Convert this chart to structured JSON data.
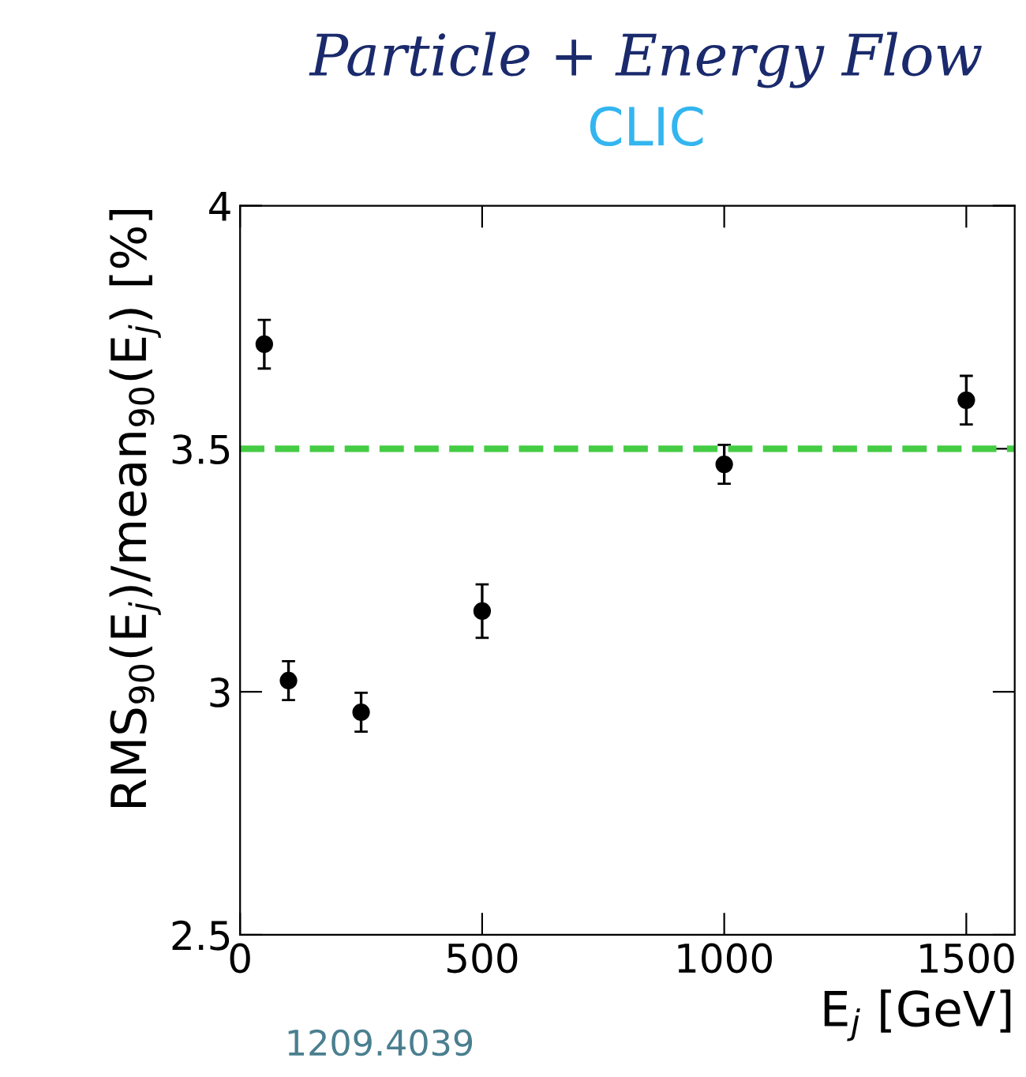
{
  "chart_data": {
    "type": "scatter",
    "title": "Particle + Energy Flow",
    "subtitle": "CLIC",
    "xlabel": "E$_{j}$ [GeV]",
    "ylabel": "RMS$_{90}$(E$_{j}$)/mean$_{90}$(E$_{j}$) [%]",
    "x": [
      50,
      100,
      250,
      500,
      1000,
      1500
    ],
    "series": [
      {
        "color": "#000000",
        "values": [
          3.715,
          3.023,
          2.958,
          3.166,
          3.468,
          3.6
        ],
        "errors": [
          0.05,
          0.04,
          0.04,
          0.055,
          0.04,
          0.05
        ]
      }
    ],
    "xlim": [
      0,
      1600
    ],
    "xticks": [
      0,
      500,
      1000,
      1500
    ],
    "ylim": [
      2.5,
      4
    ],
    "yticks": [
      2.5,
      3,
      3.5,
      4
    ],
    "ref_lines": [
      {
        "axis": "y",
        "value": 3.5,
        "color": "#44cc44",
        "line_style": "dashed"
      }
    ],
    "annotations": [
      "1209.4039"
    ],
    "marker": "circle",
    "grid": false,
    "legend": false
  }
}
